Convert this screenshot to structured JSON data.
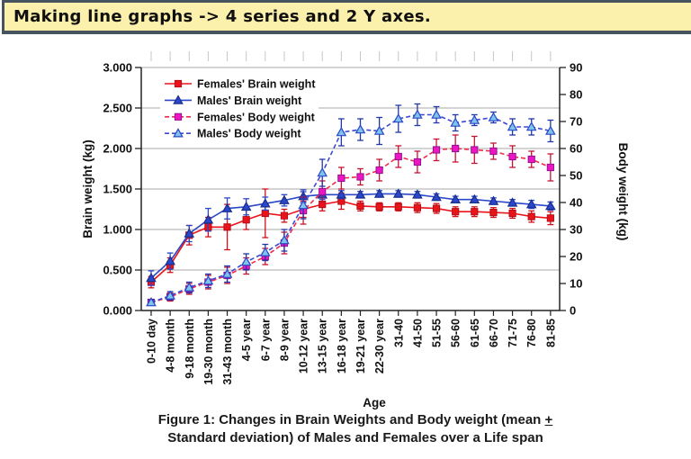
{
  "header": {
    "title": "Making line graphs -> 4 series and 2 Y axes.",
    "bg_color": "#FCF0AD",
    "border_color": "#46545F"
  },
  "figure_caption": {
    "line1": "Figure 1: Changes in Brain Weights and Body weight (mean ",
    "plus_minus": "+",
    "line2": "Standard deviation) of Males and Females over a Life span"
  },
  "chart_data": {
    "type": "line",
    "error_bars": true,
    "grid": true,
    "legend_position": "top-left-inside",
    "x_axis_title": "Age",
    "categories": [
      "0-10 day",
      "4-8 month",
      "9-18 month",
      "19-30 month",
      "31-43 month",
      "4-5 year",
      "6-7 year",
      "8-9 year",
      "10-12 year",
      "13-15 year",
      "16-18 year",
      "19-21 year",
      "22-30 year",
      "31-40",
      "41-50",
      "51-55",
      "56-60",
      "61-65",
      "66-70",
      "71-75",
      "76-80",
      "81-85"
    ],
    "left_axis": {
      "title": "Brain weight (kg)",
      "min": 0,
      "max": 3,
      "step": 0.5,
      "tick_labels": [
        "0.000",
        "0.500",
        "1.000",
        "1.500",
        "2.000",
        "2.500",
        "3.000"
      ]
    },
    "right_axis": {
      "title": "Body weight (kg)",
      "min": 0,
      "max": 90,
      "step": 10,
      "tick_labels": [
        "0",
        "10",
        "20",
        "30",
        "40",
        "50",
        "60",
        "70",
        "80",
        "90"
      ]
    },
    "series": [
      {
        "name": "Females' Brain weight",
        "axis": "left",
        "line_style": "solid",
        "marker": "square",
        "line_color": "#E8141C",
        "marker_fill": "#E8141C",
        "marker_stroke": "#B50E14",
        "error_color": "#D01018",
        "values": [
          0.35,
          0.56,
          0.93,
          1.03,
          1.03,
          1.12,
          1.2,
          1.17,
          1.25,
          1.31,
          1.35,
          1.29,
          1.28,
          1.28,
          1.27,
          1.26,
          1.22,
          1.22,
          1.21,
          1.2,
          1.16,
          1.14
        ],
        "errors": [
          0.07,
          0.09,
          0.12,
          0.12,
          0.28,
          0.12,
          0.3,
          0.08,
          0.1,
          0.08,
          0.1,
          0.06,
          0.05,
          0.05,
          0.06,
          0.06,
          0.06,
          0.06,
          0.06,
          0.06,
          0.07,
          0.08
        ]
      },
      {
        "name": "Males' Brain weight",
        "axis": "left",
        "line_style": "solid",
        "marker": "triangle",
        "line_color": "#2A47C9",
        "marker_fill": "#2A47C9",
        "marker_stroke": "#1A2E8C",
        "error_color": "#2A47C9",
        "values": [
          0.4,
          0.61,
          0.95,
          1.12,
          1.26,
          1.28,
          1.32,
          1.36,
          1.41,
          1.43,
          1.43,
          1.43,
          1.44,
          1.44,
          1.43,
          1.4,
          1.37,
          1.37,
          1.35,
          1.33,
          1.31,
          1.29
        ],
        "errors": [
          0.09,
          0.1,
          0.1,
          0.14,
          0.13,
          0.1,
          0.08,
          0.07,
          0.08,
          0.06,
          0.05,
          0.04,
          0.04,
          0.04,
          0.04,
          0.04,
          0.04,
          0.04,
          0.04,
          0.04,
          0.05,
          0.05
        ]
      },
      {
        "name": "Females' Body weight",
        "axis": "right",
        "line_style": "dashed",
        "marker": "square",
        "line_color": "#EF2B4B",
        "marker_fill": "#EE16C4",
        "marker_stroke": "#8F128E",
        "error_color": "#C51431",
        "values": [
          3,
          5,
          8,
          10.5,
          13,
          16.5,
          20,
          25,
          37,
          44,
          49,
          49.5,
          52,
          57,
          55,
          59.5,
          60,
          59.5,
          59,
          57,
          56,
          53
        ],
        "errors": [
          1,
          1.5,
          2,
          2.5,
          3,
          3,
          3,
          4,
          5,
          4,
          4,
          3,
          4,
          4,
          4,
          4,
          5,
          5,
          3,
          4,
          3,
          5
        ]
      },
      {
        "name": "Males' Body weight",
        "axis": "right",
        "line_style": "dashed",
        "marker": "triangle-open",
        "line_color": "#3D49D4",
        "marker_fill": "#7FC4EA",
        "marker_stroke": "#2A47C9",
        "error_color": "#2336A8",
        "values": [
          3,
          5.5,
          8.5,
          11,
          13.5,
          18,
          21.5,
          26,
          39,
          51,
          66,
          67,
          66.5,
          71,
          72.5,
          72.5,
          69.5,
          70.5,
          71.5,
          68,
          68,
          66.5
        ],
        "errors": [
          1,
          1.5,
          2,
          2.5,
          3,
          3,
          3,
          4,
          5,
          5,
          5,
          4,
          5,
          5,
          4,
          3,
          3,
          2,
          2,
          3,
          3,
          4
        ]
      }
    ]
  }
}
